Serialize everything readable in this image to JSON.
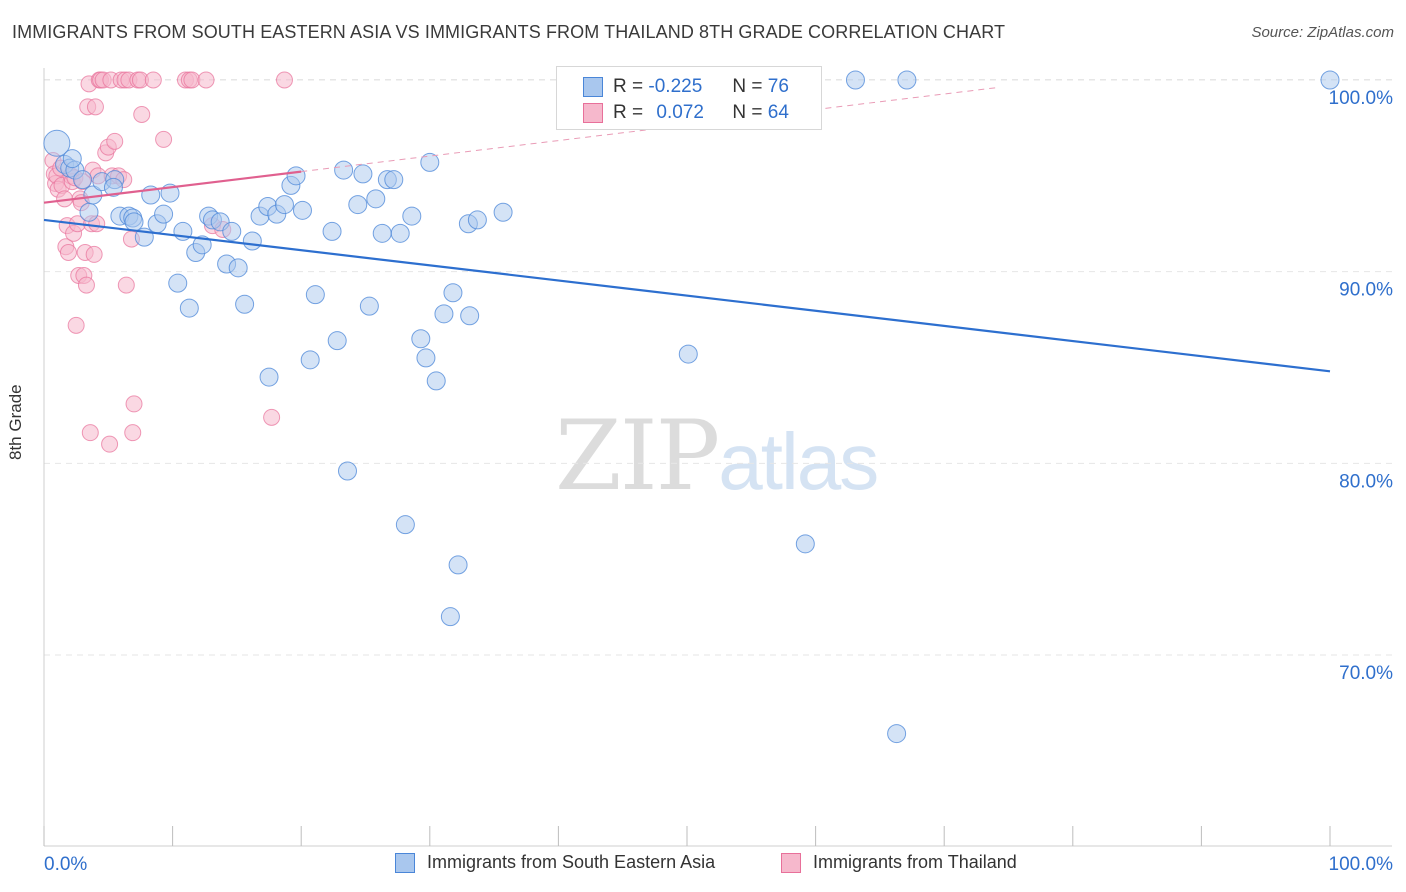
{
  "header": {
    "title": "IMMIGRANTS FROM SOUTH EASTERN ASIA VS IMMIGRANTS FROM THAILAND 8TH GRADE CORRELATION CHART",
    "source": "Source: ZipAtlas.com"
  },
  "watermark": {
    "zip": "ZIP",
    "atlas": "atlas"
  },
  "legend": {
    "r_label": "R =",
    "n_label": "N =",
    "series1": {
      "r": "-0.225",
      "n": "76"
    },
    "series2": {
      "r": "0.072",
      "n": "64"
    }
  },
  "chart_data": {
    "type": "scatter",
    "xlabel": "",
    "ylabel": "8th Grade",
    "x_tick_labels": [
      "0.0%",
      "100.0%"
    ],
    "y_tick_labels": [
      "70.0%",
      "80.0%",
      "90.0%",
      "100.0%"
    ],
    "xlim": [
      0,
      100
    ],
    "ylim": [
      60.5,
      101.5
    ],
    "grid": true,
    "legend_position": "bottom",
    "colors": {
      "blue": "#4a86d8",
      "blue_fill": "#a9c7ee",
      "pink": "#e8709a",
      "pink_fill": "#f6b8cc",
      "tick_label": "#2f6fcc"
    },
    "series": [
      {
        "name": "Immigrants from South Eastern Asia",
        "color": "#4a86d8",
        "points": [
          [
            1.0,
            96.7
          ],
          [
            1.6,
            95.6
          ],
          [
            2.0,
            95.4
          ],
          [
            2.4,
            95.3
          ],
          [
            3.0,
            94.8
          ],
          [
            3.5,
            93.1
          ],
          [
            3.8,
            94.0
          ],
          [
            4.5,
            94.7
          ],
          [
            5.5,
            94.8
          ],
          [
            5.4,
            94.4
          ],
          [
            5.9,
            92.9
          ],
          [
            6.6,
            92.9
          ],
          [
            6.9,
            92.8
          ],
          [
            7.0,
            92.6
          ],
          [
            7.8,
            91.8
          ],
          [
            8.3,
            94.0
          ],
          [
            8.8,
            92.5
          ],
          [
            9.3,
            93.0
          ],
          [
            9.8,
            94.1
          ],
          [
            10.4,
            89.4
          ],
          [
            10.8,
            92.1
          ],
          [
            11.3,
            88.1
          ],
          [
            11.8,
            91.0
          ],
          [
            12.3,
            91.4
          ],
          [
            12.8,
            92.9
          ],
          [
            13.1,
            92.7
          ],
          [
            13.7,
            92.6
          ],
          [
            14.2,
            90.4
          ],
          [
            14.6,
            92.1
          ],
          [
            15.1,
            90.2
          ],
          [
            15.6,
            88.3
          ],
          [
            16.2,
            91.6
          ],
          [
            16.8,
            92.9
          ],
          [
            17.4,
            93.4
          ],
          [
            17.5,
            84.5
          ],
          [
            18.1,
            93.0
          ],
          [
            18.7,
            93.5
          ],
          [
            19.2,
            94.5
          ],
          [
            19.6,
            95.0
          ],
          [
            20.1,
            93.2
          ],
          [
            20.7,
            85.4
          ],
          [
            21.1,
            88.8
          ],
          [
            22.4,
            92.1
          ],
          [
            22.8,
            86.4
          ],
          [
            23.3,
            95.3
          ],
          [
            23.6,
            79.6
          ],
          [
            24.4,
            93.5
          ],
          [
            24.8,
            95.1
          ],
          [
            25.3,
            88.2
          ],
          [
            25.8,
            93.8
          ],
          [
            26.3,
            92.0
          ],
          [
            26.7,
            94.8
          ],
          [
            27.2,
            94.8
          ],
          [
            27.7,
            92.0
          ],
          [
            28.1,
            76.8
          ],
          [
            28.6,
            92.9
          ],
          [
            29.3,
            86.5
          ],
          [
            29.7,
            85.5
          ],
          [
            30.0,
            95.7
          ],
          [
            30.5,
            84.3
          ],
          [
            31.1,
            87.8
          ],
          [
            31.6,
            72.0
          ],
          [
            31.8,
            88.9
          ],
          [
            32.2,
            74.7
          ],
          [
            33.0,
            92.5
          ],
          [
            33.1,
            87.7
          ],
          [
            33.7,
            92.7
          ],
          [
            35.7,
            93.1
          ],
          [
            43.3,
            100.0
          ],
          [
            50.1,
            85.7
          ],
          [
            59.2,
            75.8
          ],
          [
            63.1,
            100.0
          ],
          [
            66.3,
            65.9
          ],
          [
            67.1,
            100.0
          ],
          [
            100.0,
            100.0
          ],
          [
            2.2,
            95.9
          ]
        ],
        "trend": {
          "x": [
            0,
            100
          ],
          "y": [
            92.7,
            84.8
          ]
        }
      },
      {
        "name": "Immigrants from Thailand",
        "color": "#e8709a",
        "points": [
          [
            0.7,
            95.8
          ],
          [
            0.8,
            95.1
          ],
          [
            0.9,
            94.6
          ],
          [
            1.0,
            95.0
          ],
          [
            1.1,
            94.3
          ],
          [
            1.3,
            95.4
          ],
          [
            1.4,
            94.5
          ],
          [
            1.6,
            93.8
          ],
          [
            1.7,
            91.3
          ],
          [
            1.8,
            92.4
          ],
          [
            1.9,
            91.0
          ],
          [
            2.1,
            95.0
          ],
          [
            2.2,
            94.7
          ],
          [
            2.3,
            92.0
          ],
          [
            2.4,
            94.9
          ],
          [
            2.5,
            87.2
          ],
          [
            2.6,
            92.5
          ],
          [
            2.7,
            89.8
          ],
          [
            2.8,
            93.8
          ],
          [
            2.9,
            93.6
          ],
          [
            3.0,
            94.7
          ],
          [
            3.1,
            89.8
          ],
          [
            3.2,
            91.0
          ],
          [
            3.3,
            89.3
          ],
          [
            3.4,
            98.6
          ],
          [
            3.5,
            99.8
          ],
          [
            3.6,
            81.6
          ],
          [
            3.7,
            92.5
          ],
          [
            3.8,
            95.3
          ],
          [
            3.9,
            90.9
          ],
          [
            4.0,
            98.6
          ],
          [
            4.1,
            92.5
          ],
          [
            4.2,
            95.0
          ],
          [
            4.3,
            100.0
          ],
          [
            4.4,
            100.0
          ],
          [
            4.6,
            100.0
          ],
          [
            4.8,
            96.2
          ],
          [
            5.0,
            96.5
          ],
          [
            5.1,
            81.0
          ],
          [
            5.2,
            100.0
          ],
          [
            5.3,
            95.0
          ],
          [
            5.5,
            96.8
          ],
          [
            5.8,
            95.0
          ],
          [
            6.0,
            100.0
          ],
          [
            6.2,
            94.8
          ],
          [
            6.3,
            100.0
          ],
          [
            6.4,
            89.3
          ],
          [
            6.6,
            100.0
          ],
          [
            6.8,
            91.7
          ],
          [
            6.9,
            81.6
          ],
          [
            7.0,
            83.1
          ],
          [
            7.3,
            100.0
          ],
          [
            7.5,
            100.0
          ],
          [
            7.6,
            98.2
          ],
          [
            8.5,
            100.0
          ],
          [
            9.3,
            96.9
          ],
          [
            11.0,
            100.0
          ],
          [
            11.3,
            100.0
          ],
          [
            11.5,
            100.0
          ],
          [
            12.6,
            100.0
          ],
          [
            13.1,
            92.4
          ],
          [
            13.9,
            92.2
          ],
          [
            17.7,
            82.4
          ],
          [
            18.7,
            100.0
          ]
        ],
        "trend": {
          "x": [
            0,
            100
          ],
          "y": [
            93.6,
            101.7
          ]
        }
      }
    ]
  }
}
